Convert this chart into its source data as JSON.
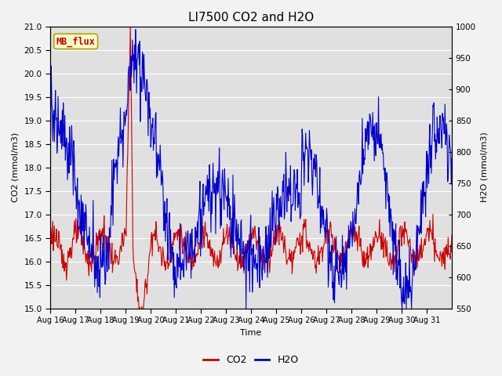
{
  "title": "LI7500 CO2 and H2O",
  "xlabel": "Time",
  "ylabel_left": "CO2 (mmol/m3)",
  "ylabel_right": "H2O (mmol/m3)",
  "ylim_left": [
    15.0,
    21.0
  ],
  "ylim_right": [
    550,
    1000
  ],
  "xtick_labels": [
    "Aug 16",
    "Aug 17",
    "Aug 18",
    "Aug 19",
    "Aug 20",
    "Aug 21",
    "Aug 22",
    "Aug 23",
    "Aug 24",
    "Aug 25",
    "Aug 26",
    "Aug 27",
    "Aug 28",
    "Aug 29",
    "Aug 30",
    "Aug 31"
  ],
  "annotation_text": "MB_flux",
  "annotation_bg": "#ffffcc",
  "annotation_border": "#aaa800",
  "annotation_text_color": "#cc0000",
  "line_co2_color": "#cc0000",
  "line_h2o_color": "#0000cc",
  "fig_bg_color": "#f2f2f2",
  "plot_bg_color": "#e0e0e0",
  "grid_color": "#ffffff",
  "title_fontsize": 11,
  "label_fontsize": 8,
  "tick_fontsize": 7.5,
  "legend_fontsize": 9
}
